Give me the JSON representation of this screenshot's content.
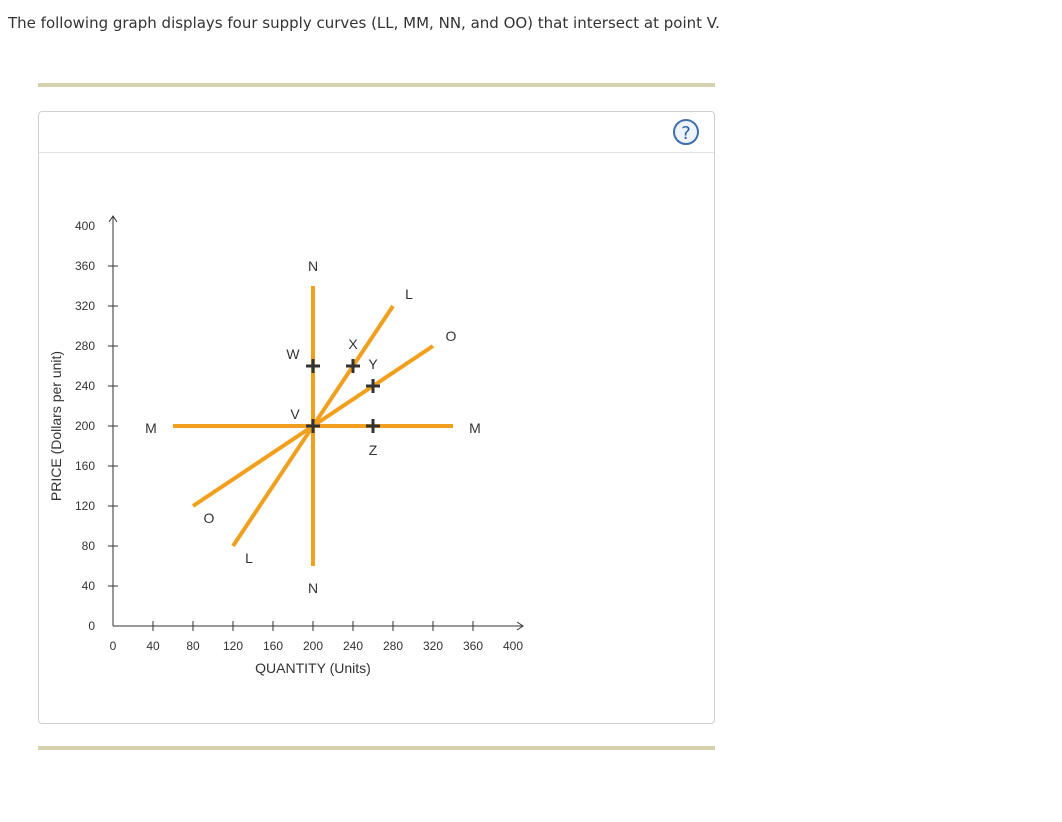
{
  "question": "The following graph displays four supply curves (LL, MM, NN, and OO) that intersect at point V.",
  "help_icon": "question-mark-icon",
  "help_symbol": "?",
  "colors": {
    "curve": "#f0a01e",
    "axis": "#333333",
    "marker": "#333333",
    "rule": "#d6d2ad",
    "help": "#3f6ea8"
  },
  "chart_data": {
    "type": "line",
    "xlabel": "QUANTITY (Units)",
    "ylabel": "PRICE (Dollars per unit)",
    "xlim": [
      0,
      400
    ],
    "ylim": [
      0,
      400
    ],
    "xticks": [
      0,
      40,
      80,
      120,
      160,
      200,
      240,
      280,
      320,
      360,
      400
    ],
    "yticks": [
      0,
      40,
      80,
      120,
      160,
      200,
      240,
      280,
      320,
      360,
      400
    ],
    "series": [
      {
        "name": "L",
        "points": [
          [
            120,
            80
          ],
          [
            280,
            320
          ]
        ],
        "labels": [
          {
            "text": "L",
            "x": 136,
            "y": 68
          },
          {
            "text": "L",
            "x": 296,
            "y": 332
          }
        ]
      },
      {
        "name": "M",
        "points": [
          [
            60,
            200
          ],
          [
            340,
            200
          ]
        ],
        "labels": [
          {
            "text": "M",
            "x": 38,
            "y": 198
          },
          {
            "text": "M",
            "x": 362,
            "y": 198
          }
        ]
      },
      {
        "name": "N",
        "points": [
          [
            200,
            60
          ],
          [
            200,
            340
          ]
        ],
        "labels": [
          {
            "text": "N",
            "x": 200,
            "y": 38
          },
          {
            "text": "N",
            "x": 200,
            "y": 360
          }
        ]
      },
      {
        "name": "O",
        "points": [
          [
            80,
            120
          ],
          [
            320,
            280
          ]
        ],
        "labels": [
          {
            "text": "O",
            "x": 96,
            "y": 108
          },
          {
            "text": "O",
            "x": 338,
            "y": 290
          }
        ]
      }
    ],
    "points": [
      {
        "name": "V",
        "x": 200,
        "y": 200,
        "label_x": 182,
        "label_y": 212
      },
      {
        "name": "W",
        "x": 200,
        "y": 260,
        "label_x": 180,
        "label_y": 272
      },
      {
        "name": "X",
        "x": 240,
        "y": 260,
        "label_x": 240,
        "label_y": 282
      },
      {
        "name": "Y",
        "x": 260,
        "y": 240,
        "label_x": 260,
        "label_y": 262
      },
      {
        "name": "Z",
        "x": 260,
        "y": 200,
        "label_x": 260,
        "label_y": 176
      }
    ]
  }
}
